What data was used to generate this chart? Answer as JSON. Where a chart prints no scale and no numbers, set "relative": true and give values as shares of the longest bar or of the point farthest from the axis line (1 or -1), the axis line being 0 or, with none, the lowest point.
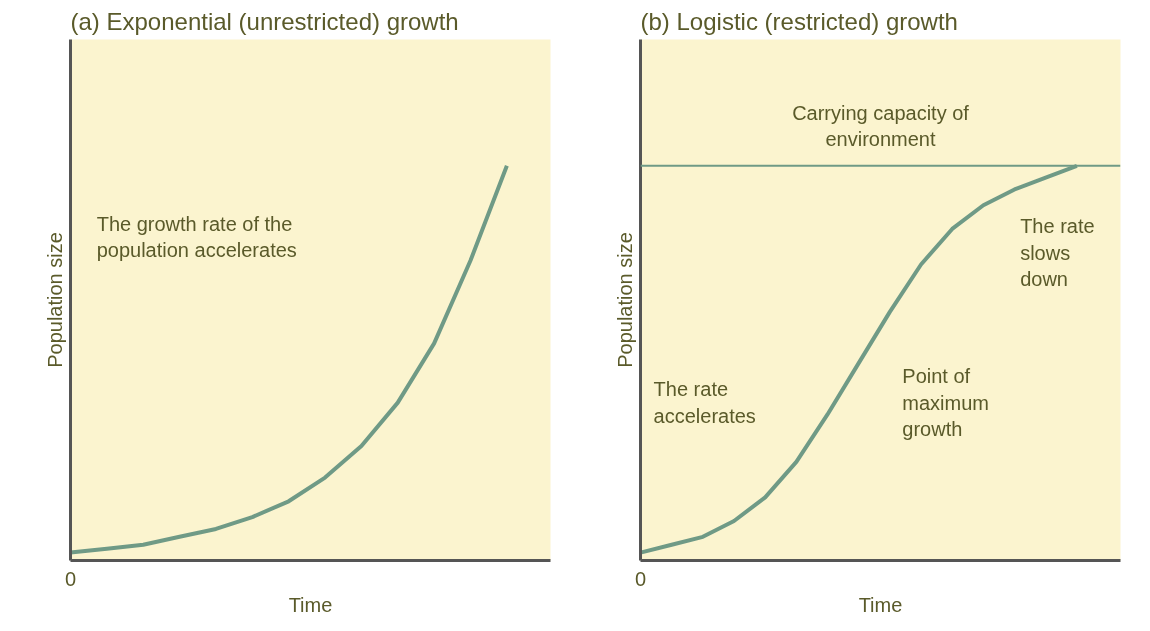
{
  "chart_data": [
    {
      "type": "line",
      "title": "(a) Exponential (unrestricted) growth",
      "xlabel": "Time",
      "ylabel": "Population size",
      "relative": true,
      "categories": [
        null,
        null,
        null,
        null,
        null,
        null,
        null,
        null,
        null,
        null,
        null,
        null,
        null
      ],
      "series": [
        {
          "color": "#6f9a86",
          "values": [
            0.02,
            0.03,
            0.04,
            0.06,
            0.08,
            0.11,
            0.15,
            0.21,
            0.29,
            0.4,
            0.55,
            0.76,
            1.0
          ]
        }
      ],
      "annotations": [
        "The growth rate of the population accelerates",
        "0"
      ]
    },
    {
      "type": "line",
      "title": "(b) Logistic (restricted) growth",
      "xlabel": "Time",
      "ylabel": "Population size",
      "relative": true,
      "categories": [
        null,
        null,
        null,
        null,
        null,
        null,
        null,
        null,
        null,
        null,
        null,
        null,
        null,
        null,
        null
      ],
      "series": [
        {
          "color": "#6f9a86",
          "values": [
            0.02,
            0.04,
            0.06,
            0.1,
            0.16,
            0.25,
            0.37,
            0.5,
            0.63,
            0.75,
            0.84,
            0.9,
            0.94,
            0.97,
            1.0
          ]
        }
      ],
      "ref_lines": [
        {
          "axis": "y",
          "value": 1.0,
          "label": "Carrying capacity of environment",
          "color": "#6f9a86"
        }
      ],
      "annotations": [
        "The rate slows down",
        "The rate accelerates",
        "Point of maximum growth",
        "0"
      ]
    }
  ]
}
